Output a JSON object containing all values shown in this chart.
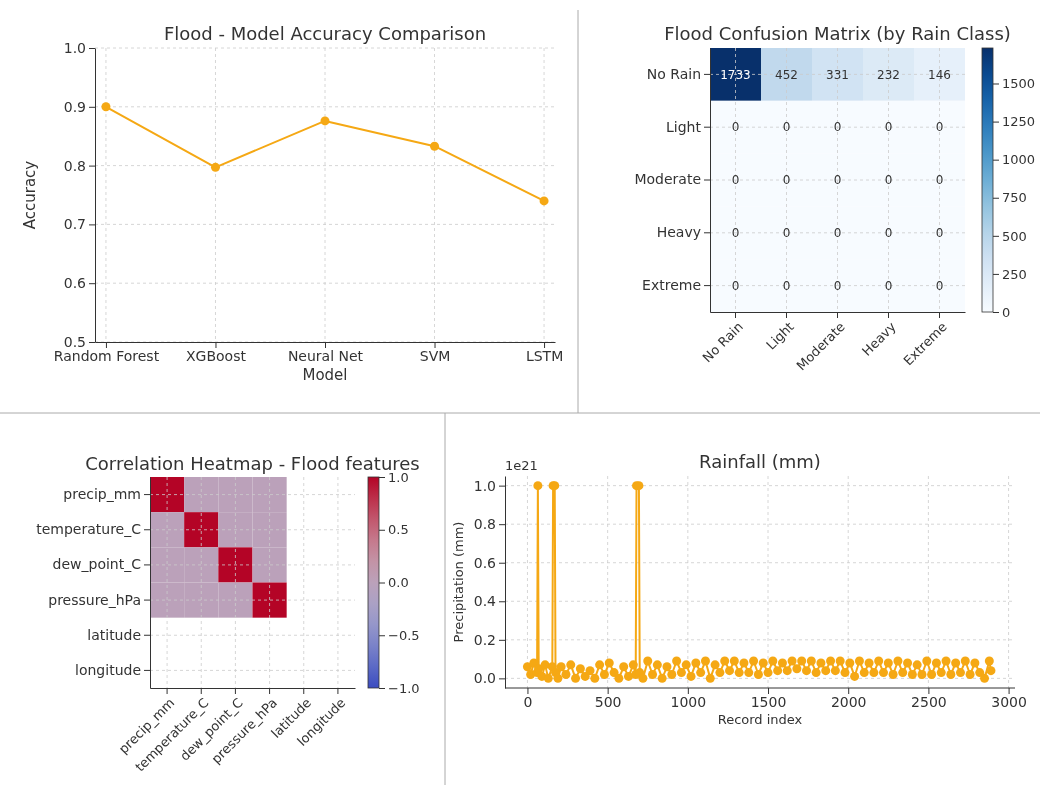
{
  "chart_data": [
    {
      "type": "line",
      "title": "Flood - Model Accuracy Comparison",
      "xlabel": "Model",
      "ylabel": "Accuracy",
      "categories": [
        "Random Forest",
        "XGBoost",
        "Neural Net",
        "SVM",
        "LSTM"
      ],
      "series": [
        {
          "color": "#f5a814",
          "values": [
            0.9,
            0.797,
            0.876,
            0.833,
            0.74
          ]
        }
      ],
      "ylim": [
        0.5,
        1.0
      ],
      "yticks": [
        {
          "value": 0.5,
          "label": "0.5"
        },
        {
          "value": 0.6,
          "label": "0.6"
        },
        {
          "value": 0.7,
          "label": "0.7"
        },
        {
          "value": 0.8,
          "label": "0.8"
        },
        {
          "value": 0.9,
          "label": "0.9"
        },
        {
          "value": 1.0,
          "label": "1.0"
        }
      ],
      "grid": true,
      "marker": "circle"
    },
    {
      "type": "heatmap",
      "title": "Flood Confusion Matrix (by Rain Class)",
      "categories": [
        "No Rain",
        "Light",
        "Moderate",
        "Heavy",
        "Extreme"
      ],
      "y_categories": [
        "No Rain",
        "Light",
        "Moderate",
        "Heavy",
        "Extreme"
      ],
      "cells": [
        [
          1733,
          452,
          331,
          232,
          146
        ],
        [
          0,
          0,
          0,
          0,
          0
        ],
        [
          0,
          0,
          0,
          0,
          0
        ],
        [
          0,
          0,
          0,
          0,
          0
        ],
        [
          0,
          0,
          0,
          0,
          0
        ]
      ],
      "clim": [
        0,
        1733
      ],
      "cticks": [
        0,
        250,
        500,
        750,
        1000,
        1250,
        1500
      ],
      "data_labels": true,
      "grid": true
    },
    {
      "type": "heatmap",
      "title": "Correlation Heatmap - Flood features",
      "categories": [
        "precip_mm",
        "temperature_C",
        "dew_point_C",
        "pressure_hPa",
        "latitude",
        "longitude"
      ],
      "y_categories": [
        "precip_mm",
        "temperature_C",
        "dew_point_C",
        "pressure_hPa",
        "latitude",
        "longitude"
      ],
      "cells": [
        [
          1,
          0,
          0,
          0,
          null,
          null
        ],
        [
          0,
          1,
          0,
          0,
          null,
          null
        ],
        [
          0,
          0,
          1,
          0,
          null,
          null
        ],
        [
          0,
          0,
          0,
          1,
          null,
          null
        ],
        [
          null,
          null,
          null,
          null,
          null,
          null
        ],
        [
          null,
          null,
          null,
          null,
          null,
          null
        ]
      ],
      "clim": [
        -1,
        1
      ],
      "cticks": [
        {
          "value": -1,
          "label": "−1.0"
        },
        {
          "value": -0.5,
          "label": "−0.5"
        },
        {
          "value": 0,
          "label": "0.0"
        },
        {
          "value": 0.5,
          "label": "0.5"
        },
        {
          "value": 1,
          "label": "1.0"
        }
      ],
      "grid": true
    },
    {
      "type": "line",
      "title": "Rainfall (mm)",
      "xlabel": "Record index",
      "ylabel": "Precipitation (mm)",
      "annotations": [
        "1e21"
      ],
      "x": [
        0,
        20,
        40,
        60,
        65,
        70,
        90,
        110,
        130,
        155,
        160,
        170,
        175,
        190,
        210,
        240,
        270,
        300,
        330,
        360,
        390,
        420,
        450,
        480,
        510,
        540,
        570,
        600,
        630,
        660,
        675,
        680,
        695,
        700,
        720,
        750,
        780,
        810,
        840,
        870,
        900,
        930,
        960,
        990,
        1020,
        1050,
        1080,
        1110,
        1140,
        1170,
        1200,
        1230,
        1260,
        1290,
        1320,
        1350,
        1380,
        1410,
        1440,
        1470,
        1500,
        1530,
        1560,
        1590,
        1620,
        1650,
        1680,
        1710,
        1740,
        1770,
        1800,
        1830,
        1860,
        1890,
        1920,
        1950,
        1980,
        2010,
        2040,
        2070,
        2100,
        2130,
        2160,
        2190,
        2220,
        2250,
        2280,
        2310,
        2340,
        2370,
        2400,
        2430,
        2460,
        2490,
        2520,
        2550,
        2580,
        2610,
        2640,
        2670,
        2700,
        2730,
        2760,
        2790,
        2820,
        2850,
        2880,
        2890
      ],
      "series": [
        {
          "color": "#f5a814",
          "values": [
            0.06,
            0.02,
            0.08,
            0.03,
            1.0,
            0.05,
            0.01,
            0.07,
            0.0,
            0.06,
            1.0,
            1.0,
            0.03,
            0.0,
            0.06,
            0.02,
            0.07,
            0.0,
            0.05,
            0.01,
            0.04,
            0.0,
            0.07,
            0.02,
            0.08,
            0.03,
            0.0,
            0.06,
            0.01,
            0.07,
            0.02,
            1.0,
            1.0,
            0.03,
            0.0,
            0.09,
            0.02,
            0.07,
            0.0,
            0.06,
            0.02,
            0.09,
            0.03,
            0.07,
            0.01,
            0.08,
            0.03,
            0.09,
            0.0,
            0.07,
            0.03,
            0.09,
            0.04,
            0.09,
            0.03,
            0.08,
            0.03,
            0.09,
            0.02,
            0.08,
            0.03,
            0.09,
            0.04,
            0.08,
            0.04,
            0.09,
            0.05,
            0.09,
            0.04,
            0.09,
            0.03,
            0.08,
            0.04,
            0.09,
            0.04,
            0.09,
            0.03,
            0.08,
            0.01,
            0.09,
            0.03,
            0.08,
            0.03,
            0.09,
            0.03,
            0.08,
            0.02,
            0.09,
            0.03,
            0.08,
            0.02,
            0.07,
            0.02,
            0.09,
            0.02,
            0.08,
            0.03,
            0.09,
            0.02,
            0.08,
            0.03,
            0.09,
            0.02,
            0.08,
            0.03,
            0.0,
            0.09,
            0.04
          ]
        }
      ],
      "xlim": [
        -140,
        3040
      ],
      "xticks": [
        0,
        500,
        1000,
        1500,
        2000,
        2500,
        3000
      ],
      "ylim": [
        -0.05,
        1.05
      ],
      "yticks": [
        {
          "value": 0,
          "label": "0.0"
        },
        {
          "value": 0.2,
          "label": "0.2"
        },
        {
          "value": 0.4,
          "label": "0.4"
        },
        {
          "value": 0.6,
          "label": "0.6"
        },
        {
          "value": 0.8,
          "label": "0.8"
        },
        {
          "value": 1.0,
          "label": "1.0"
        }
      ],
      "grid": true,
      "marker": "circle"
    }
  ]
}
